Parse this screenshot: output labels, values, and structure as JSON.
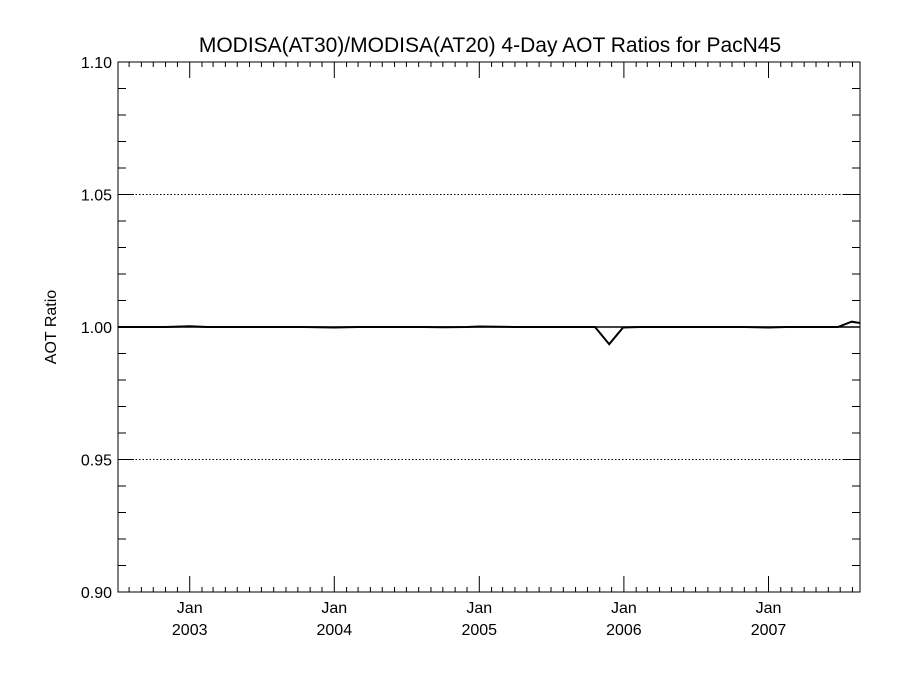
{
  "chart_data": {
    "type": "line",
    "title": "MODISA(AT30)/MODISA(AT20) 4-Day AOT Ratios for PacN45",
    "xlabel": "",
    "ylabel": "AOT Ratio",
    "ylim": [
      0.9,
      1.1
    ],
    "xlim": [
      "2002-07-04",
      "2007-08-20"
    ],
    "y_ticks": [
      "0.90",
      "0.95",
      "1.00",
      "1.05",
      "1.10"
    ],
    "x_ticks": [
      {
        "date": "2003-01-01",
        "month": "Jan",
        "year": "2003"
      },
      {
        "date": "2004-01-01",
        "month": "Jan",
        "year": "2004"
      },
      {
        "date": "2005-01-01",
        "month": "Jan",
        "year": "2005"
      },
      {
        "date": "2006-01-01",
        "month": "Jan",
        "year": "2006"
      },
      {
        "date": "2007-01-01",
        "month": "Jan",
        "year": "2007"
      }
    ],
    "grid": "horizontal dotted lines at major y ticks",
    "reference_line": 1.0,
    "series": [
      {
        "color": "#000000",
        "points": [
          [
            "2002-07-04",
            1.0
          ],
          [
            "2002-11-01",
            1.0
          ],
          [
            "2003-01-01",
            1.0003
          ],
          [
            "2003-02-15",
            1.0
          ],
          [
            "2003-10-15",
            1.0
          ],
          [
            "2004-01-01",
            0.9998
          ],
          [
            "2004-03-01",
            1.0
          ],
          [
            "2004-08-15",
            1.0
          ],
          [
            "2004-10-01",
            0.9999
          ],
          [
            "2004-12-01",
            1.0
          ],
          [
            "2005-01-01",
            1.0002
          ],
          [
            "2005-04-01",
            1.0
          ],
          [
            "2005-07-15",
            1.0
          ],
          [
            "2005-10-20",
            1.0
          ],
          [
            "2005-11-25",
            0.9935
          ],
          [
            "2005-12-30",
            0.9998
          ],
          [
            "2006-02-15",
            1.0
          ],
          [
            "2006-11-01",
            1.0
          ],
          [
            "2007-01-01",
            0.9998
          ],
          [
            "2007-02-15",
            1.0
          ],
          [
            "2007-06-25",
            1.0
          ],
          [
            "2007-07-30",
            1.002
          ],
          [
            "2007-08-20",
            1.0015
          ]
        ]
      }
    ]
  }
}
